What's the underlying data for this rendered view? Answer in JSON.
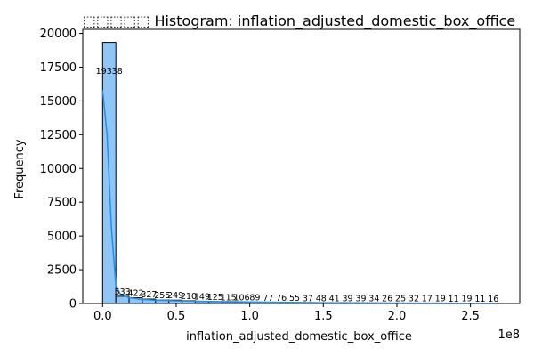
{
  "chart_data": {
    "type": "bar",
    "title": "⬚⬚⬚⬚⬚ Histogram: inflation_adjusted_domestic_box_office",
    "xlabel": "inflation_adjusted_domestic_box_office",
    "ylabel": "Frequency",
    "x_offset_label": "1e8",
    "xlim": [
      -0.135,
      2.835
    ],
    "ylim": [
      0,
      20300
    ],
    "x_ticks": [
      0.0,
      0.5,
      1.0,
      1.5,
      2.0,
      2.5
    ],
    "x_tick_labels": [
      "0.0",
      "0.5",
      "1.0",
      "1.5",
      "2.0",
      "2.5"
    ],
    "y_ticks": [
      0,
      2500,
      5000,
      7500,
      10000,
      12500,
      15000,
      17500,
      20000
    ],
    "y_tick_labels": [
      "0",
      "2500",
      "5000",
      "7500",
      "10000",
      "12500",
      "15000",
      "17500",
      "20000"
    ],
    "bin_start": 0.0,
    "bin_width": 0.09,
    "values": [
      19338,
      533,
      422,
      327,
      255,
      249,
      210,
      149,
      125,
      115,
      106,
      89,
      77,
      76,
      55,
      37,
      48,
      41,
      39,
      39,
      34,
      26,
      25,
      32,
      17,
      19,
      11,
      19,
      11,
      16
    ],
    "value_labels": [
      "19338",
      "533",
      "422",
      "327",
      "255",
      "249",
      "210",
      "149",
      "125",
      "115",
      "106",
      "89",
      "77",
      "76",
      "55",
      "37",
      "48",
      "41",
      "39",
      "39",
      "34",
      "26",
      "25",
      "32",
      "17",
      "19",
      "11",
      "19",
      "11",
      "16"
    ],
    "kde": {
      "x": [
        0.0,
        0.03,
        0.06,
        0.09,
        0.12,
        0.18,
        0.25,
        0.35,
        0.5,
        0.7,
        1.0,
        1.5,
        2.0,
        2.5,
        2.7
      ],
      "y": [
        15800,
        12500,
        5600,
        1300,
        700,
        430,
        320,
        250,
        200,
        160,
        110,
        60,
        35,
        20,
        15
      ]
    },
    "bar_fill": "#8fc5f7",
    "bar_stroke": "#000000",
    "kde_color": "#1f8ff0",
    "grid": false
  }
}
